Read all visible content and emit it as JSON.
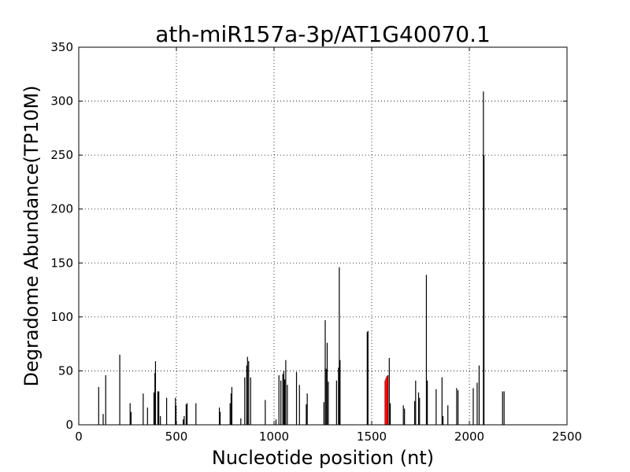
{
  "chart_data": {
    "type": "bar",
    "title": "ath-miR157a-3p/AT1G40070.1",
    "xlabel": "Nucleotide position (nt)",
    "ylabel": "Degradome Abundance(TP10M)",
    "xlim": [
      0,
      2500
    ],
    "ylim": [
      0,
      350
    ],
    "xticks": [
      "0",
      "500",
      "1000",
      "1500",
      "2000",
      "2500"
    ],
    "yticks": [
      "0",
      "50",
      "100",
      "150",
      "200",
      "250",
      "300",
      "350"
    ],
    "grid": true,
    "series": [
      {
        "color": "#000000",
        "points": [
          [
            102,
            35
          ],
          [
            125,
            10
          ],
          [
            138,
            46
          ],
          [
            210,
            65
          ],
          [
            263,
            20
          ],
          [
            268,
            12
          ],
          [
            330,
            29
          ],
          [
            352,
            16
          ],
          [
            385,
            30
          ],
          [
            390,
            48
          ],
          [
            393,
            59
          ],
          [
            405,
            31
          ],
          [
            410,
            31
          ],
          [
            418,
            8
          ],
          [
            450,
            25
          ],
          [
            495,
            25
          ],
          [
            498,
            18
          ],
          [
            535,
            5
          ],
          [
            540,
            8
          ],
          [
            550,
            19
          ],
          [
            555,
            20
          ],
          [
            600,
            20
          ],
          [
            720,
            16
          ],
          [
            724,
            12
          ],
          [
            775,
            20
          ],
          [
            780,
            29
          ],
          [
            784,
            35
          ],
          [
            830,
            6
          ],
          [
            850,
            44
          ],
          [
            860,
            55
          ],
          [
            864,
            63
          ],
          [
            870,
            59
          ],
          [
            880,
            44
          ],
          [
            955,
            23
          ],
          [
            1010,
            5
          ],
          [
            1025,
            46
          ],
          [
            1035,
            41
          ],
          [
            1045,
            47
          ],
          [
            1050,
            50
          ],
          [
            1055,
            42
          ],
          [
            1060,
            60
          ],
          [
            1068,
            37
          ],
          [
            1115,
            49
          ],
          [
            1130,
            37
          ],
          [
            1165,
            19
          ],
          [
            1170,
            29
          ],
          [
            1255,
            21
          ],
          [
            1262,
            97
          ],
          [
            1267,
            52
          ],
          [
            1272,
            76
          ],
          [
            1278,
            40
          ],
          [
            1320,
            41
          ],
          [
            1330,
            53
          ],
          [
            1334,
            146
          ],
          [
            1338,
            60
          ],
          [
            1477,
            86
          ],
          [
            1481,
            87
          ],
          [
            1583,
            46
          ],
          [
            1590,
            62
          ],
          [
            1595,
            20
          ],
          [
            1662,
            18
          ],
          [
            1668,
            15
          ],
          [
            1720,
            22
          ],
          [
            1725,
            41
          ],
          [
            1740,
            30
          ],
          [
            1745,
            25
          ],
          [
            1780,
            139
          ],
          [
            1785,
            41
          ],
          [
            1830,
            33
          ],
          [
            1860,
            44
          ],
          [
            1865,
            8
          ],
          [
            1890,
            18
          ],
          [
            1935,
            34
          ],
          [
            1942,
            32
          ],
          [
            2020,
            34
          ],
          [
            2040,
            39
          ],
          [
            2050,
            55
          ],
          [
            2072,
            309
          ],
          [
            2075,
            250
          ],
          [
            2170,
            31
          ],
          [
            2178,
            31
          ]
        ]
      },
      {
        "color": "#ff0000",
        "points": [
          [
            1568,
            41
          ],
          [
            1572,
            43
          ],
          [
            1576,
            45
          ],
          [
            1580,
            45
          ]
        ]
      }
    ]
  }
}
